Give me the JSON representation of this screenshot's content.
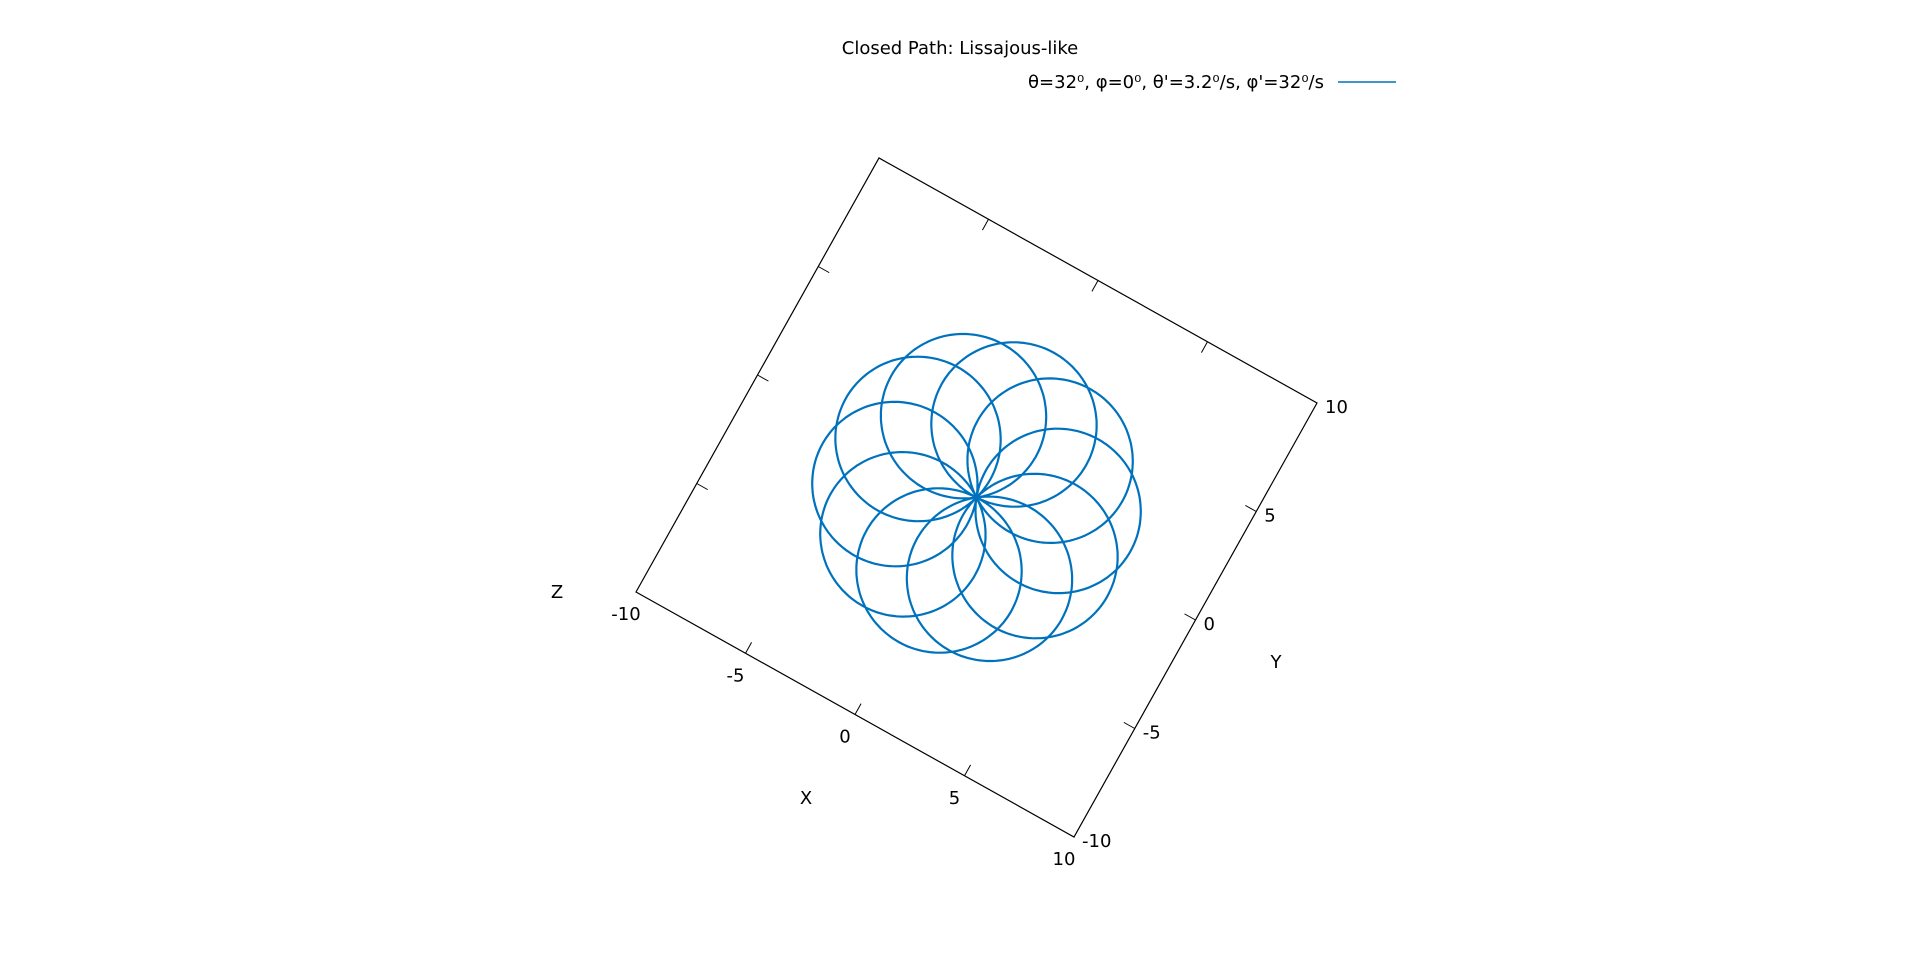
{
  "chart_data": {
    "type": "line",
    "kind": "3d-parametric-curve",
    "title": "Closed Path: Lissajous-like",
    "legend": {
      "position": "top-right",
      "entries": [
        {
          "label": "θ=32⁰, φ=0⁰, θ'=3.2⁰/s, φ'=32⁰/s",
          "color": "#0072bd"
        }
      ]
    },
    "axes": {
      "x": {
        "label": "X",
        "range": [
          -10,
          10
        ],
        "ticks": [
          "-10",
          "-5",
          "0",
          "5",
          "10"
        ],
        "tick_values": [
          -10,
          -5,
          0,
          5,
          10
        ]
      },
      "y": {
        "label": "Y",
        "range": [
          -10,
          10
        ],
        "ticks": [
          "-10",
          "-5",
          "0",
          "5",
          "10"
        ],
        "tick_values": [
          -10,
          -5,
          0,
          5,
          10
        ]
      },
      "z": {
        "label": "Z"
      }
    },
    "view": "top-down, rotated",
    "series": [
      {
        "name": "θ=32⁰, φ=0⁰, θ'=3.2⁰/s, φ'=32⁰/s",
        "color": "#0072bd",
        "curve": "rose",
        "loops": 10,
        "loop_radius": 3.3,
        "center": [
          0,
          0
        ]
      }
    ],
    "grid": false
  }
}
